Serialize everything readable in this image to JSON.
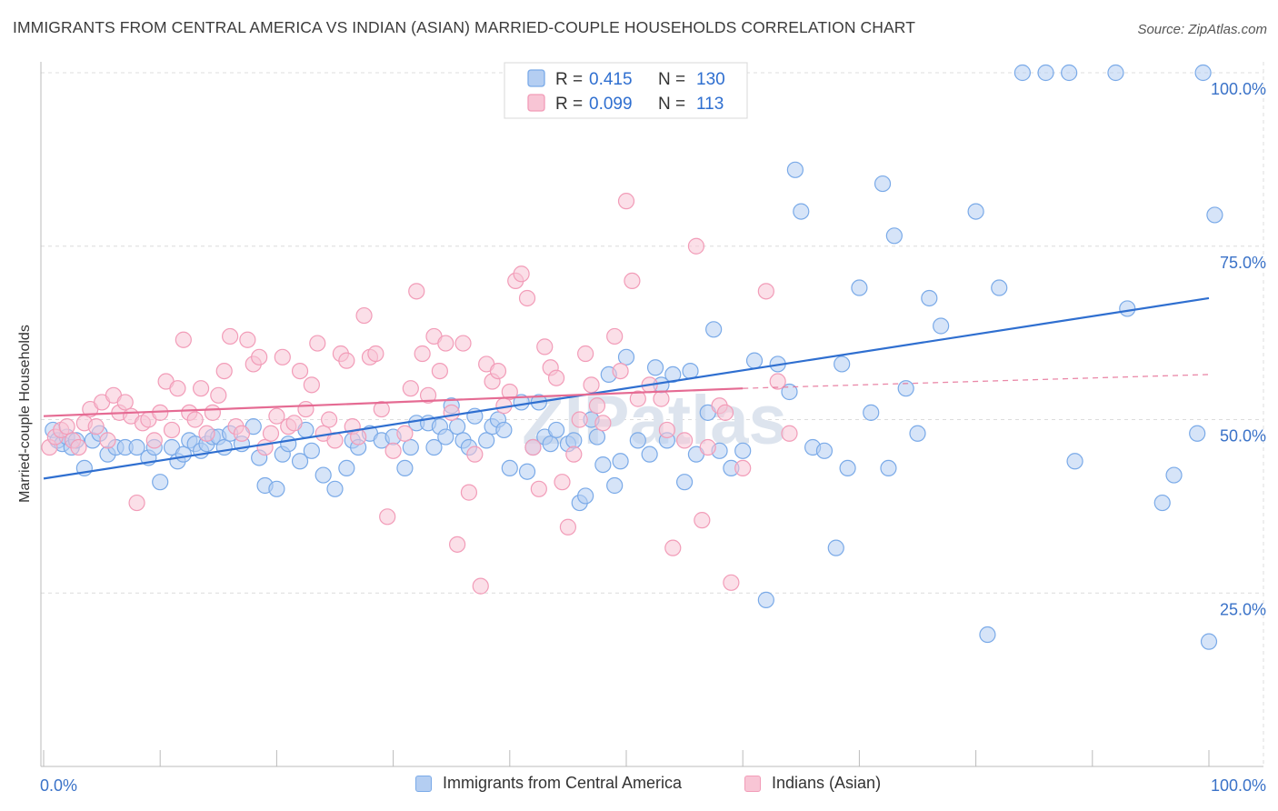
{
  "chart_data": {
    "type": "scatter",
    "title": "IMMIGRANTS FROM CENTRAL AMERICA VS INDIAN (ASIAN) MARRIED-COUPLE HOUSEHOLDS CORRELATION CHART",
    "source": "Source: ZipAtlas.com",
    "watermark": "ZIPatlas",
    "xlabel": "",
    "ylabel": "Married-couple Households",
    "xlim": [
      0,
      100
    ],
    "ylim": [
      0,
      100
    ],
    "x_tick_labels": {
      "left": "0.0%",
      "right": "100.0%"
    },
    "y_ticks": [
      {
        "value": 25,
        "label": "25.0%"
      },
      {
        "value": 50,
        "label": "50.0%"
      },
      {
        "value": 75,
        "label": "75.0%"
      },
      {
        "value": 100,
        "label": "100.0%"
      }
    ],
    "grid": true,
    "legend_position": "top-center",
    "series": [
      {
        "name": "Immigrants from Central America",
        "color": "#7aaae8",
        "fill": "#b4cef2",
        "line_color": "#2f6fd0",
        "r_label": "R = ",
        "r_value": "0.415",
        "n_label": "N = ",
        "n_value": "130",
        "trend": {
          "x0": 0,
          "y0": 41.5,
          "x1": 100,
          "y1": 67.5
        },
        "points": [
          [
            0.8,
            48.5
          ],
          [
            1.2,
            47
          ],
          [
            1.6,
            46.5
          ],
          [
            2.0,
            47.5
          ],
          [
            2.4,
            46
          ],
          [
            2.8,
            47
          ],
          [
            3.5,
            43
          ],
          [
            4.2,
            47
          ],
          [
            4.8,
            48
          ],
          [
            5.5,
            45
          ],
          [
            6.2,
            46
          ],
          [
            7.0,
            46
          ],
          [
            8.0,
            46
          ],
          [
            9.0,
            44.5
          ],
          [
            9.5,
            46
          ],
          [
            10,
            41
          ],
          [
            11,
            46
          ],
          [
            11.5,
            44
          ],
          [
            12,
            45
          ],
          [
            12.5,
            47
          ],
          [
            13,
            46.5
          ],
          [
            13.5,
            45.5
          ],
          [
            14,
            46.5
          ],
          [
            14.5,
            47.5
          ],
          [
            15,
            47.5
          ],
          [
            15.5,
            46
          ],
          [
            16,
            48
          ],
          [
            17,
            46.5
          ],
          [
            18,
            49
          ],
          [
            18.5,
            44.5
          ],
          [
            19,
            40.5
          ],
          [
            20,
            40
          ],
          [
            20.5,
            45
          ],
          [
            21,
            46.5
          ],
          [
            22,
            44
          ],
          [
            22.5,
            48.5
          ],
          [
            23,
            45.5
          ],
          [
            24,
            42
          ],
          [
            25,
            40
          ],
          [
            26,
            43
          ],
          [
            26.5,
            47
          ],
          [
            27,
            46
          ],
          [
            28,
            48
          ],
          [
            29,
            47
          ],
          [
            30,
            47.5
          ],
          [
            31,
            43
          ],
          [
            31.5,
            46
          ],
          [
            32,
            49.5
          ],
          [
            33,
            49.5
          ],
          [
            33.5,
            46
          ],
          [
            34,
            49
          ],
          [
            34.5,
            47.5
          ],
          [
            35,
            52
          ],
          [
            35.5,
            49
          ],
          [
            36,
            47
          ],
          [
            36.5,
            46
          ],
          [
            37,
            50.5
          ],
          [
            38,
            47
          ],
          [
            38.5,
            49
          ],
          [
            39,
            50
          ],
          [
            39.5,
            48.5
          ],
          [
            40,
            43
          ],
          [
            41,
            52.5
          ],
          [
            41.5,
            42.5
          ],
          [
            42,
            46
          ],
          [
            42.5,
            52.5
          ],
          [
            43,
            47.5
          ],
          [
            43.5,
            46.5
          ],
          [
            44,
            48.5
          ],
          [
            45,
            46.5
          ],
          [
            45.5,
            47
          ],
          [
            46,
            38
          ],
          [
            46.5,
            39
          ],
          [
            47,
            50
          ],
          [
            47.5,
            47.5
          ],
          [
            48,
            43.5
          ],
          [
            48.5,
            56.5
          ],
          [
            49,
            40.5
          ],
          [
            49.5,
            44
          ],
          [
            50,
            59
          ],
          [
            51,
            47
          ],
          [
            52,
            45
          ],
          [
            52.5,
            57.5
          ],
          [
            53,
            55
          ],
          [
            53.5,
            47
          ],
          [
            54,
            56.5
          ],
          [
            55,
            41
          ],
          [
            55.5,
            57
          ],
          [
            56,
            45
          ],
          [
            57,
            51
          ],
          [
            57.5,
            63
          ],
          [
            58,
            45.5
          ],
          [
            59,
            43
          ],
          [
            60,
            45.5
          ],
          [
            61,
            58.5
          ],
          [
            62,
            24
          ],
          [
            63,
            58
          ],
          [
            64,
            54
          ],
          [
            64.5,
            86
          ],
          [
            65,
            80
          ],
          [
            66,
            46
          ],
          [
            67,
            45.5
          ],
          [
            68,
            31.5
          ],
          [
            68.5,
            58
          ],
          [
            69,
            43
          ],
          [
            70,
            69
          ],
          [
            71,
            51
          ],
          [
            72,
            84
          ],
          [
            72.5,
            43
          ],
          [
            73,
            76.5
          ],
          [
            74,
            54.5
          ],
          [
            75,
            48
          ],
          [
            76,
            67.5
          ],
          [
            77,
            63.5
          ],
          [
            80,
            80
          ],
          [
            81,
            19
          ],
          [
            82,
            69
          ],
          [
            84,
            100
          ],
          [
            86,
            100
          ],
          [
            88,
            100
          ],
          [
            88.5,
            44
          ],
          [
            92,
            100
          ],
          [
            93,
            66
          ],
          [
            96,
            38
          ],
          [
            97,
            42
          ],
          [
            99,
            48
          ],
          [
            99.5,
            100
          ],
          [
            100,
            18
          ],
          [
            100.5,
            79.5
          ]
        ]
      },
      {
        "name": "Indians (Asian)",
        "color": "#f29cb8",
        "fill": "#f8c5d5",
        "line_color": "#e56b93",
        "r_label": "R = ",
        "r_value": "0.099",
        "n_label": "N = ",
        "n_value": "113",
        "trend": {
          "x0": 0,
          "y0": 50.5,
          "x1": 60,
          "y1": 54.5
        },
        "trend_dashed": {
          "x0": 60,
          "y0": 54.5,
          "x1": 100,
          "y1": 56.5
        },
        "points": [
          [
            0.5,
            46
          ],
          [
            1,
            47.5
          ],
          [
            1.5,
            48.5
          ],
          [
            2,
            49
          ],
          [
            2.5,
            47
          ],
          [
            3,
            46
          ],
          [
            3.5,
            49.5
          ],
          [
            4,
            51.5
          ],
          [
            4.5,
            49
          ],
          [
            5,
            52.5
          ],
          [
            5.5,
            47
          ],
          [
            6,
            53.5
          ],
          [
            6.5,
            51
          ],
          [
            7,
            52.5
          ],
          [
            7.5,
            50.5
          ],
          [
            8,
            38
          ],
          [
            8.5,
            49.5
          ],
          [
            9,
            50
          ],
          [
            9.5,
            47
          ],
          [
            10,
            51
          ],
          [
            10.5,
            55.5
          ],
          [
            11,
            48.5
          ],
          [
            11.5,
            54.5
          ],
          [
            12,
            61.5
          ],
          [
            12.5,
            51
          ],
          [
            13,
            50
          ],
          [
            13.5,
            54.5
          ],
          [
            14,
            48
          ],
          [
            14.5,
            51
          ],
          [
            15,
            53.5
          ],
          [
            15.5,
            57
          ],
          [
            16,
            62
          ],
          [
            16.5,
            49
          ],
          [
            17,
            48
          ],
          [
            17.5,
            61.5
          ],
          [
            18,
            58
          ],
          [
            18.5,
            59
          ],
          [
            19,
            46
          ],
          [
            19.5,
            48
          ],
          [
            20,
            50.5
          ],
          [
            20.5,
            59
          ],
          [
            21,
            49
          ],
          [
            21.5,
            49.5
          ],
          [
            22,
            57
          ],
          [
            22.5,
            51.5
          ],
          [
            23,
            55
          ],
          [
            23.5,
            61
          ],
          [
            24,
            48
          ],
          [
            24.5,
            50
          ],
          [
            25,
            47
          ],
          [
            25.5,
            59.5
          ],
          [
            26,
            58.5
          ],
          [
            26.5,
            49
          ],
          [
            27,
            47.5
          ],
          [
            27.5,
            65
          ],
          [
            28,
            59
          ],
          [
            28.5,
            59.5
          ],
          [
            29,
            51.5
          ],
          [
            29.5,
            36
          ],
          [
            30,
            45.5
          ],
          [
            31,
            48
          ],
          [
            31.5,
            54.5
          ],
          [
            32,
            68.5
          ],
          [
            32.5,
            59.5
          ],
          [
            33,
            53.5
          ],
          [
            33.5,
            62
          ],
          [
            34,
            57
          ],
          [
            34.5,
            61
          ],
          [
            35,
            51
          ],
          [
            35.5,
            32
          ],
          [
            36,
            61
          ],
          [
            36.5,
            39.5
          ],
          [
            37,
            45
          ],
          [
            37.5,
            26
          ],
          [
            38,
            58
          ],
          [
            38.5,
            55.5
          ],
          [
            39,
            57
          ],
          [
            39.5,
            52
          ],
          [
            40,
            54
          ],
          [
            40.5,
            70
          ],
          [
            41,
            71
          ],
          [
            41.5,
            67.5
          ],
          [
            42,
            46
          ],
          [
            42.5,
            40
          ],
          [
            43,
            60.5
          ],
          [
            43.5,
            57.5
          ],
          [
            44,
            56
          ],
          [
            44.5,
            41
          ],
          [
            45,
            34.5
          ],
          [
            45.5,
            45
          ],
          [
            46,
            50
          ],
          [
            46.5,
            59.5
          ],
          [
            47,
            55
          ],
          [
            47.5,
            52
          ],
          [
            48,
            49.5
          ],
          [
            49,
            62
          ],
          [
            49.5,
            57
          ],
          [
            50,
            81.5
          ],
          [
            50.5,
            70
          ],
          [
            51,
            53
          ],
          [
            52,
            55
          ],
          [
            53,
            53
          ],
          [
            53.5,
            48.5
          ],
          [
            54,
            31.5
          ],
          [
            55,
            47
          ],
          [
            56,
            75
          ],
          [
            56.5,
            35.5
          ],
          [
            57,
            46
          ],
          [
            58,
            52
          ],
          [
            58.5,
            51
          ],
          [
            59,
            26.5
          ],
          [
            60,
            43
          ],
          [
            62,
            68.5
          ],
          [
            63,
            55.5
          ],
          [
            64,
            48
          ]
        ]
      }
    ]
  },
  "bottom_legend": [
    {
      "label": "Immigrants from Central America"
    },
    {
      "label": "Indians (Asian)"
    }
  ]
}
